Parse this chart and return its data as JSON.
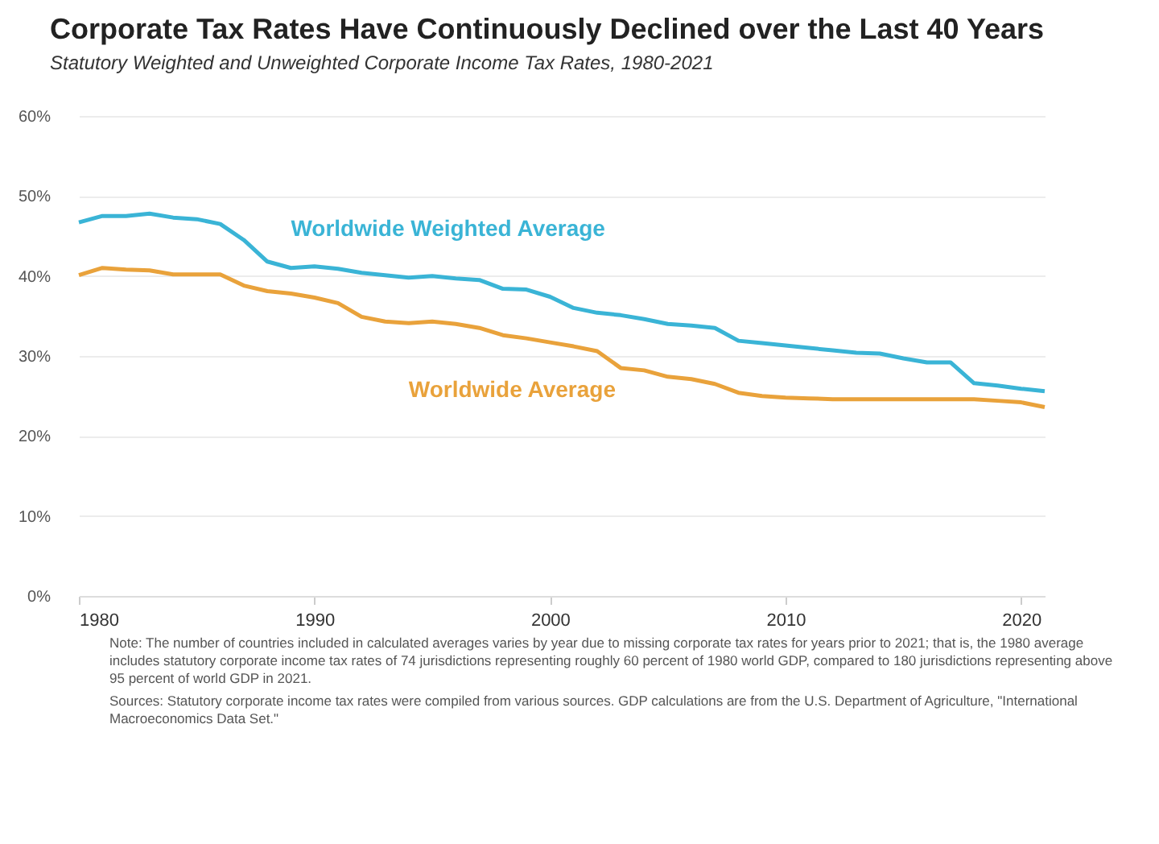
{
  "chart_data": {
    "type": "line",
    "title": "Corporate Tax Rates Have Continuously Declined over the Last 40 Years",
    "subtitle": "Statutory Weighted and Unweighted Corporate Income Tax Rates, 1980-2021",
    "x": [
      1980,
      1981,
      1982,
      1983,
      1984,
      1985,
      1986,
      1987,
      1988,
      1989,
      1990,
      1991,
      1992,
      1993,
      1994,
      1995,
      1996,
      1997,
      1998,
      1999,
      2000,
      2001,
      2002,
      2003,
      2004,
      2005,
      2006,
      2007,
      2008,
      2009,
      2010,
      2011,
      2012,
      2013,
      2014,
      2015,
      2016,
      2017,
      2018,
      2019,
      2020,
      2021
    ],
    "series": [
      {
        "name": "Worldwide Weighted Average",
        "color": "#3ab4d6",
        "values": [
          46.7,
          47.5,
          47.5,
          47.8,
          47.3,
          47.1,
          46.5,
          44.5,
          41.8,
          41.0,
          41.2,
          40.9,
          40.4,
          40.1,
          39.8,
          40.0,
          39.7,
          39.5,
          38.4,
          38.3,
          37.4,
          36.0,
          35.4,
          35.1,
          34.6,
          34.0,
          33.8,
          33.5,
          31.9,
          31.6,
          31.3,
          31.0,
          30.7,
          30.4,
          30.3,
          29.7,
          29.2,
          29.2,
          26.6,
          26.3,
          25.9,
          25.6
        ]
      },
      {
        "name": "Worldwide Average",
        "color": "#e9a23b",
        "values": [
          40.1,
          41.0,
          40.8,
          40.7,
          40.2,
          40.2,
          40.2,
          38.8,
          38.1,
          37.8,
          37.3,
          36.6,
          34.9,
          34.3,
          34.1,
          34.3,
          34.0,
          33.5,
          32.6,
          32.2,
          31.7,
          31.2,
          30.6,
          28.5,
          28.2,
          27.4,
          27.1,
          26.5,
          25.4,
          25.0,
          24.8,
          24.7,
          24.6,
          24.6,
          24.6,
          24.6,
          24.6,
          24.6,
          24.6,
          24.4,
          24.2,
          23.6
        ]
      }
    ],
    "xlim": [
      1980,
      2021
    ],
    "xticks": [
      1980,
      1990,
      2000,
      2010,
      2020
    ],
    "ylim": [
      0,
      60
    ],
    "yticks": [
      {
        "value": 0,
        "label": "0%"
      },
      {
        "value": 10,
        "label": "10%"
      },
      {
        "value": 20,
        "label": "20%"
      },
      {
        "value": 30,
        "label": "30%"
      },
      {
        "value": 40,
        "label": "40%"
      },
      {
        "value": 50,
        "label": "50%"
      },
      {
        "value": 60,
        "label": "60%"
      }
    ],
    "grid": "y",
    "legend": false,
    "marker": "none",
    "line_style": "solid",
    "annotations": [
      "Note: The number of countries included in calculated averages varies by year due to missing corporate tax rates for years prior to 2021; that is, the 1980 average includes statutory corporate income tax rates of 74 jurisdictions representing roughly 60 percent of 1980 world GDP, compared to 180 jurisdictions representing above 95 percent of world GDP in 2021.",
      "Sources: Statutory corporate income tax rates were compiled from various sources. GDP calculations are from the U.S. Department of Agriculture, \"International Macroeconomics Data Set.\""
    ]
  }
}
